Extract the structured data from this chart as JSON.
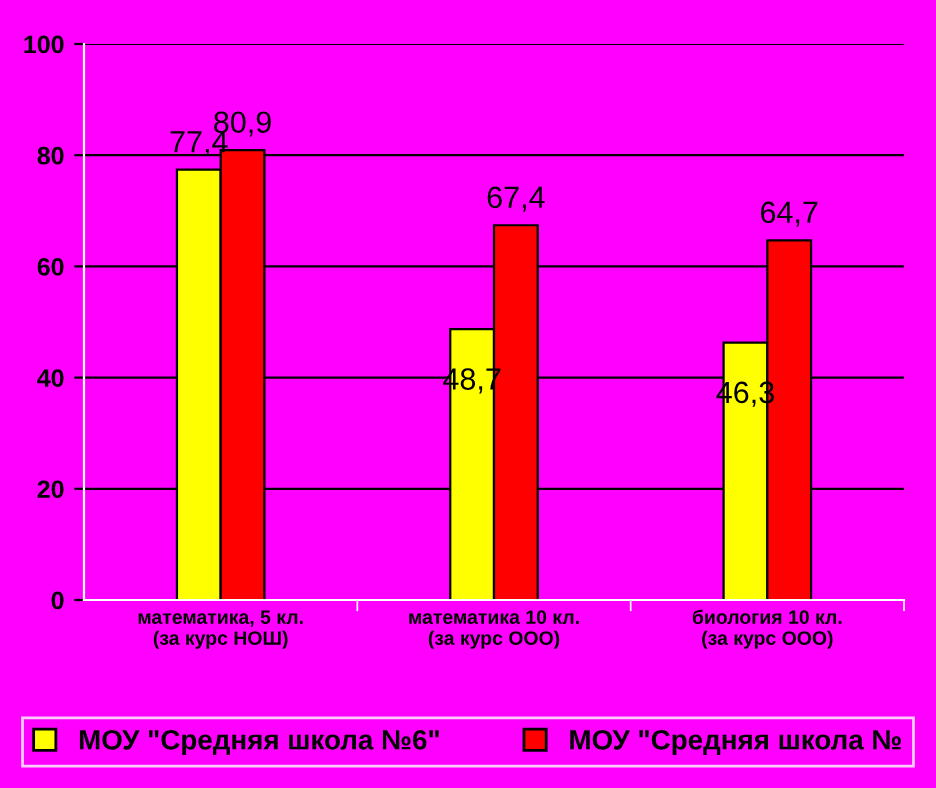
{
  "chart_data": {
    "type": "bar",
    "categories": [
      "математика, 5 кл.\n(за курс НОШ)",
      "математика 10 кл.\n(за курс ООО)",
      "биология 10 кл.\n(за курс ООО)"
    ],
    "series": [
      {
        "name": "МОУ \"Средняя школа №6\"",
        "color": "#ffff00",
        "values": [
          77.4,
          48.7,
          46.3
        ],
        "value_labels": [
          "77,4",
          "48,7",
          "46,3"
        ]
      },
      {
        "name": "МОУ \"Средняя школа №",
        "color": "#ff0000",
        "values": [
          80.9,
          67.4,
          64.7
        ],
        "value_labels": [
          "80,9",
          "67,4",
          "64,7"
        ]
      }
    ],
    "ylim": [
      0,
      100
    ],
    "yticks": [
      0,
      20,
      40,
      60,
      80,
      100
    ],
    "grid": "y",
    "legend": "bottom"
  }
}
